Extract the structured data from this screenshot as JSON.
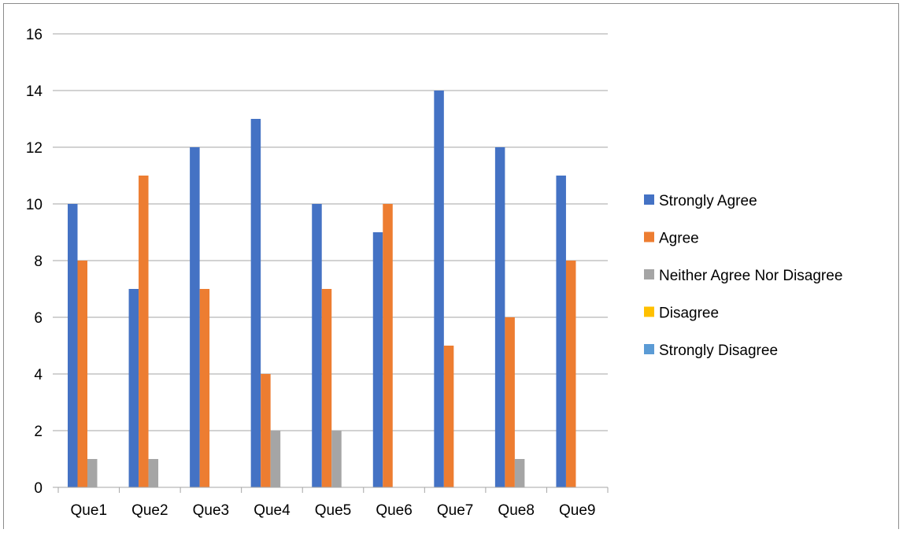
{
  "chart_data": {
    "type": "bar",
    "title": "",
    "xlabel": "",
    "ylabel": "",
    "ylim": [
      0,
      16
    ],
    "yticks": [
      0,
      2,
      4,
      6,
      8,
      10,
      12,
      14,
      16
    ],
    "grid": true,
    "legend_position": "right",
    "categories": [
      "Que1",
      "Que2",
      "Que3",
      "Que4",
      "Que5",
      "Que6",
      "Que7",
      "Que8",
      "Que9"
    ],
    "series": [
      {
        "name": "Strongly Agree",
        "color": "#4472C4",
        "values": [
          10,
          7,
          12,
          13,
          10,
          9,
          14,
          12,
          11
        ]
      },
      {
        "name": "Agree",
        "color": "#ED7D31",
        "values": [
          8,
          11,
          7,
          4,
          7,
          10,
          5,
          6,
          8
        ]
      },
      {
        "name": "Neither Agree Nor Disagree",
        "color": "#A5A5A5",
        "values": [
          1,
          1,
          0,
          2,
          2,
          0,
          0,
          1,
          0
        ]
      },
      {
        "name": "Disagree",
        "color": "#FFC000",
        "values": [
          0,
          0,
          0,
          0,
          0,
          0,
          0,
          0,
          0
        ]
      },
      {
        "name": "Strongly Disagree",
        "color": "#5B9BD5",
        "values": [
          0,
          0,
          0,
          0,
          0,
          0,
          0,
          0,
          0
        ]
      }
    ]
  }
}
